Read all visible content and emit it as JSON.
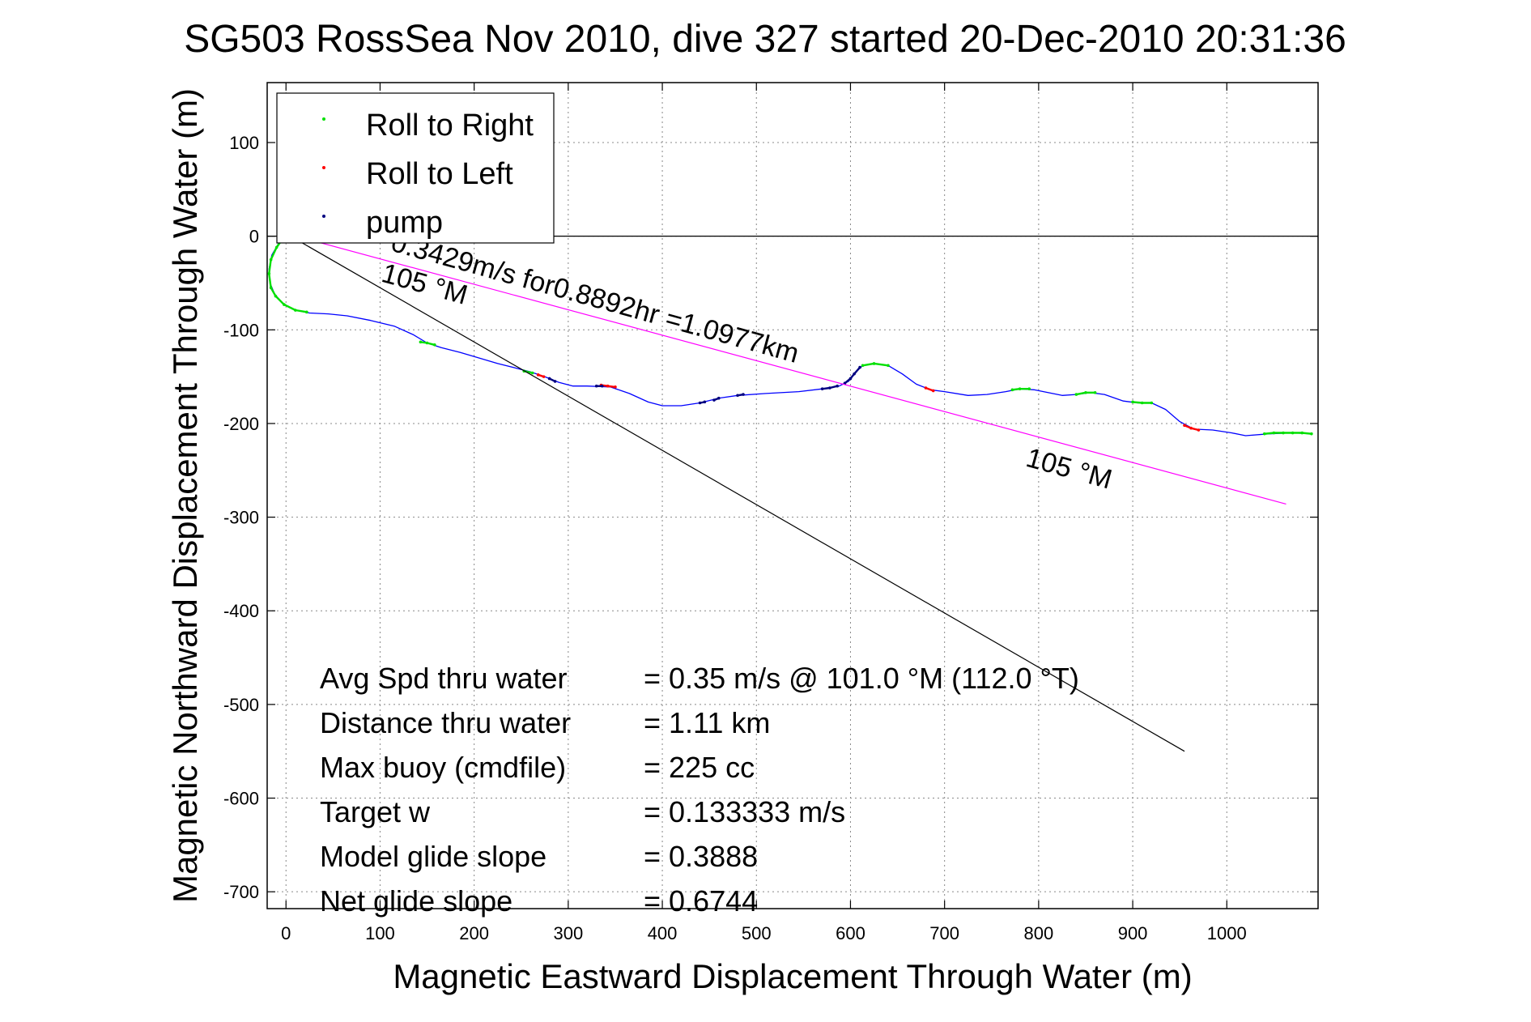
{
  "chart_data": {
    "type": "line",
    "title": "SG503 RossSea Nov 2010, dive 327 started 20-Dec-2010 20:31:36",
    "xlabel": "Magnetic Eastward Displacement Through Water (m)",
    "ylabel": "Magnetic Northward Displacement Through Water (m)",
    "xlim": [
      -20,
      1097
    ],
    "ylim": [
      -718,
      164
    ],
    "xticks": [
      0,
      100,
      200,
      300,
      400,
      500,
      600,
      700,
      800,
      900,
      1000
    ],
    "yticks": [
      100,
      0,
      -100,
      -200,
      -300,
      -400,
      -500,
      -600,
      -700
    ],
    "grid": true,
    "legend_position": "top-left",
    "legend": [
      {
        "label": "Roll to Right",
        "color": "#00e000"
      },
      {
        "label": "Roll to Left",
        "color": "#ff0000"
      },
      {
        "label": "pump",
        "color": "#000080"
      }
    ],
    "series": [
      {
        "name": "track",
        "color": "#0000ff",
        "points": [
          [
            0,
            0
          ],
          [
            -8,
            -8
          ],
          [
            -15,
            -20
          ],
          [
            -18,
            -35
          ],
          [
            -17,
            -50
          ],
          [
            -12,
            -62
          ],
          [
            -3,
            -72
          ],
          [
            10,
            -79
          ],
          [
            25,
            -82
          ],
          [
            45,
            -83
          ],
          [
            65,
            -85
          ],
          [
            90,
            -90
          ],
          [
            115,
            -96
          ],
          [
            135,
            -105
          ],
          [
            150,
            -114
          ],
          [
            165,
            -119
          ],
          [
            185,
            -124
          ],
          [
            205,
            -130
          ],
          [
            225,
            -136
          ],
          [
            245,
            -141
          ],
          [
            260,
            -145
          ],
          [
            275,
            -150
          ],
          [
            290,
            -156
          ],
          [
            305,
            -160
          ],
          [
            320,
            -160
          ],
          [
            345,
            -161
          ],
          [
            365,
            -168
          ],
          [
            385,
            -177
          ],
          [
            400,
            -181
          ],
          [
            420,
            -181
          ],
          [
            440,
            -178
          ],
          [
            460,
            -173
          ],
          [
            480,
            -170
          ],
          [
            510,
            -168
          ],
          [
            545,
            -166
          ],
          [
            570,
            -163
          ],
          [
            588,
            -160
          ],
          [
            598,
            -155
          ],
          [
            606,
            -145
          ],
          [
            613,
            -138
          ],
          [
            625,
            -136
          ],
          [
            640,
            -138
          ],
          [
            655,
            -147
          ],
          [
            670,
            -158
          ],
          [
            685,
            -164
          ],
          [
            700,
            -166
          ],
          [
            725,
            -170
          ],
          [
            745,
            -169
          ],
          [
            765,
            -166
          ],
          [
            780,
            -163
          ],
          [
            795,
            -164
          ],
          [
            810,
            -167
          ],
          [
            825,
            -170
          ],
          [
            840,
            -169
          ],
          [
            855,
            -167
          ],
          [
            870,
            -169
          ],
          [
            890,
            -176
          ],
          [
            905,
            -178
          ],
          [
            920,
            -178
          ],
          [
            935,
            -185
          ],
          [
            950,
            -198
          ],
          [
            965,
            -206
          ],
          [
            985,
            -207
          ],
          [
            1005,
            -210
          ],
          [
            1020,
            -213
          ],
          [
            1045,
            -211
          ],
          [
            1070,
            -210
          ],
          [
            1090,
            -211
          ]
        ]
      },
      {
        "name": "Roll to Right",
        "color": "#00e000",
        "segments": [
          [
            [
              -3,
              -2
            ],
            [
              -10,
              -12
            ],
            [
              -16,
              -25
            ],
            [
              -18,
              -40
            ],
            [
              -16,
              -55
            ],
            [
              -11,
              -64
            ],
            [
              -2,
              -73
            ],
            [
              10,
              -79
            ],
            [
              22,
              -81
            ]
          ],
          [
            [
              143,
              -113
            ],
            [
              150,
              -114
            ],
            [
              158,
              -116
            ]
          ],
          [
            [
              253,
              -144
            ],
            [
              262,
              -146
            ]
          ],
          [
            [
              613,
              -138
            ],
            [
              625,
              -136
            ],
            [
              640,
              -138
            ]
          ],
          [
            [
              772,
              -164
            ],
            [
              780,
              -163
            ],
            [
              790,
              -163
            ]
          ],
          [
            [
              840,
              -169
            ],
            [
              850,
              -167
            ],
            [
              860,
              -167
            ]
          ],
          [
            [
              900,
              -177
            ],
            [
              910,
              -178
            ],
            [
              920,
              -178
            ]
          ],
          [
            [
              1040,
              -211
            ],
            [
              1050,
              -210
            ],
            [
              1060,
              -210
            ],
            [
              1070,
              -210
            ],
            [
              1080,
              -210
            ],
            [
              1090,
              -211
            ]
          ]
        ]
      },
      {
        "name": "Roll to Left",
        "color": "#ff0000",
        "segments": [
          [
            [
              268,
              -148
            ],
            [
              274,
              -150
            ]
          ],
          [
            [
              335,
              -159
            ],
            [
              342,
              -160
            ],
            [
              350,
              -161
            ]
          ],
          [
            [
              680,
              -162
            ],
            [
              688,
              -165
            ]
          ],
          [
            [
              955,
              -202
            ],
            [
              962,
              -205
            ],
            [
              970,
              -207
            ]
          ]
        ]
      },
      {
        "name": "pump",
        "color": "#000080",
        "segments": [
          [
            [
              280,
              -152
            ],
            [
              286,
              -155
            ]
          ],
          [
            [
              330,
              -160
            ],
            [
              336,
              -160
            ]
          ],
          [
            [
              440,
              -178
            ],
            [
              445,
              -177
            ]
          ],
          [
            [
              455,
              -175
            ],
            [
              460,
              -173
            ]
          ],
          [
            [
              480,
              -170
            ],
            [
              486,
              -169
            ]
          ],
          [
            [
              570,
              -163
            ],
            [
              578,
              -162
            ],
            [
              586,
              -160
            ]
          ],
          [
            [
              594,
              -157
            ],
            [
              600,
              -152
            ],
            [
              604,
              -147
            ],
            [
              610,
              -140
            ]
          ]
        ]
      },
      {
        "name": "heading 105 M (black)",
        "color": "#000000",
        "points": [
          [
            10,
            -3
          ],
          [
            955,
            -550
          ]
        ]
      },
      {
        "name": "heading 105 M (magenta)",
        "color": "#ff00ff",
        "points": [
          [
            22,
            -3
          ],
          [
            1063,
            -286
          ]
        ]
      }
    ],
    "annotations": [
      {
        "text": "0.3429m/s for0.8892hr =1.0977km",
        "x": 110,
        "y": -15,
        "rotation": 15.5
      },
      {
        "text": "105 °M",
        "x": 100,
        "y": -48,
        "rotation": 15.5
      },
      {
        "text": "105 °M",
        "x": 785,
        "y": -245,
        "rotation": 15.5
      }
    ],
    "stats": [
      {
        "label": "Avg Spd thru water",
        "value": "=  0.35 m/s @ 101.0 °M (112.0 °T)"
      },
      {
        "label": "Distance thru water",
        "value": "=  1.11 km"
      },
      {
        "label": "Max buoy (cmdfile)",
        "value": "= 225 cc"
      },
      {
        "label": "Target w",
        "value": "= 0.133333 m/s"
      },
      {
        "label": "Model glide slope",
        "value": "= 0.3888"
      },
      {
        "label": "Net glide slope",
        "value": "= 0.6744"
      }
    ]
  }
}
